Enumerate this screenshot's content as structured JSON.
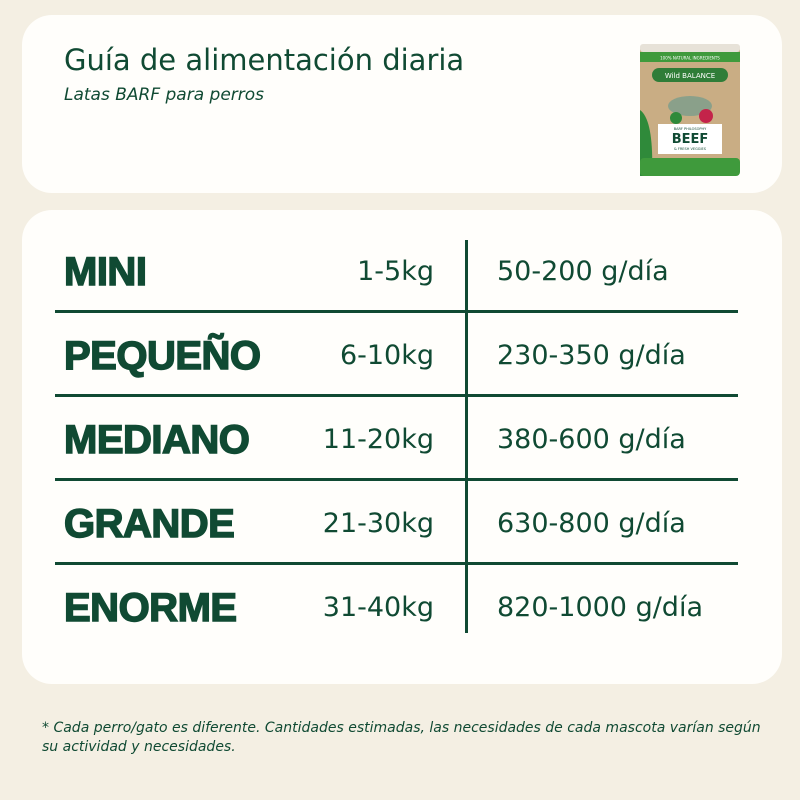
{
  "header": {
    "title": "Guía de alimentación diaria",
    "subtitle": "Latas BARF para perros"
  },
  "product_image": {
    "brand": "Wild BALANCE",
    "top_band": "100% NATURAL INGREDIENTS",
    "tagline": "BARF PHILOSOPHY",
    "flavor": "BEEF",
    "flavor_sub": "& FRESH VEGGIES",
    "colors": {
      "green": "#3f9a3c",
      "kraft": "#c9ad84"
    }
  },
  "table": {
    "rows": [
      {
        "size": "MINI",
        "weight": "1-5kg",
        "amount": "50-200 g/día"
      },
      {
        "size": "PEQUEÑO",
        "weight": "6-10kg",
        "amount": "230-350 g/día"
      },
      {
        "size": "MEDIANO",
        "weight": "11-20kg",
        "amount": "380-600 g/día"
      },
      {
        "size": "GRANDE",
        "weight": "21-30kg",
        "amount": "630-800 g/día"
      },
      {
        "size": "ENORME",
        "weight": "31-40kg",
        "amount": "820-1000 g/día"
      }
    ]
  },
  "footnote": "* Cada perro/gato es diferente. Cantidades estimadas, las necesidades de cada mascota varían según su actividad y necesidades.",
  "colors": {
    "primary": "#104a33",
    "background": "#f4efe3",
    "card": "#fffefb"
  }
}
